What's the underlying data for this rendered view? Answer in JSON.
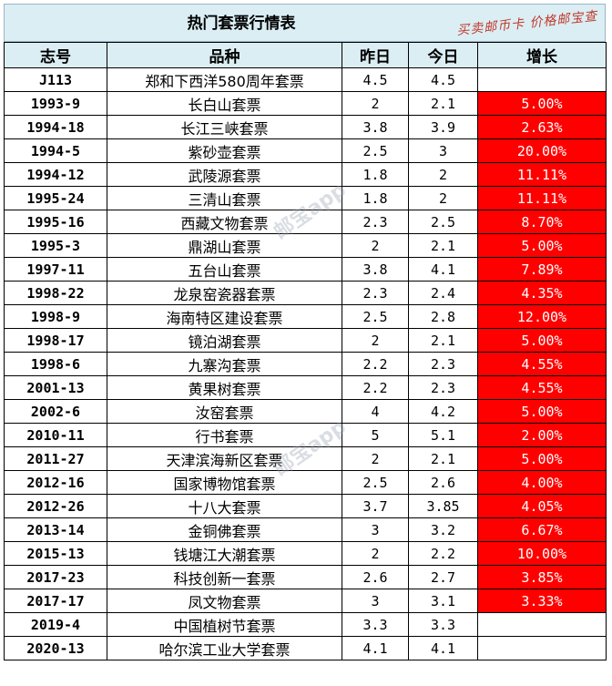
{
  "title": "热门套票行情表",
  "signature": "买卖邮币卡 价格邮宝查",
  "watermark": "邮宝app",
  "headers": [
    "志号",
    "品种",
    "昨日",
    "今日",
    "增长"
  ],
  "rows": [
    {
      "id": "J113",
      "name": "郑和下西洋580周年套票",
      "yesterday": "4.5",
      "today": "4.5",
      "growth": ""
    },
    {
      "id": "1993-9",
      "name": "长白山套票",
      "yesterday": "2",
      "today": "2.1",
      "growth": "5.00%"
    },
    {
      "id": "1994-18",
      "name": "长江三峡套票",
      "yesterday": "3.8",
      "today": "3.9",
      "growth": "2.63%"
    },
    {
      "id": "1994-5",
      "name": "紫砂壶套票",
      "yesterday": "2.5",
      "today": "3",
      "growth": "20.00%"
    },
    {
      "id": "1994-12",
      "name": "武陵源套票",
      "yesterday": "1.8",
      "today": "2",
      "growth": "11.11%"
    },
    {
      "id": "1995-24",
      "name": "三清山套票",
      "yesterday": "1.8",
      "today": "2",
      "growth": "11.11%"
    },
    {
      "id": "1995-16",
      "name": "西藏文物套票",
      "yesterday": "2.3",
      "today": "2.5",
      "growth": "8.70%"
    },
    {
      "id": "1995-3",
      "name": "鼎湖山套票",
      "yesterday": "2",
      "today": "2.1",
      "growth": "5.00%"
    },
    {
      "id": "1997-11",
      "name": "五台山套票",
      "yesterday": "3.8",
      "today": "4.1",
      "growth": "7.89%"
    },
    {
      "id": "1998-22",
      "name": "龙泉窑瓷器套票",
      "yesterday": "2.3",
      "today": "2.4",
      "growth": "4.35%"
    },
    {
      "id": "1998-9",
      "name": "海南特区建设套票",
      "yesterday": "2.5",
      "today": "2.8",
      "growth": "12.00%"
    },
    {
      "id": "1998-17",
      "name": "镜泊湖套票",
      "yesterday": "2",
      "today": "2.1",
      "growth": "5.00%"
    },
    {
      "id": "1998-6",
      "name": "九寨沟套票",
      "yesterday": "2.2",
      "today": "2.3",
      "growth": "4.55%"
    },
    {
      "id": "2001-13",
      "name": "黄果树套票",
      "yesterday": "2.2",
      "today": "2.3",
      "growth": "4.55%"
    },
    {
      "id": "2002-6",
      "name": "汝窑套票",
      "yesterday": "4",
      "today": "4.2",
      "growth": "5.00%"
    },
    {
      "id": "2010-11",
      "name": "行书套票",
      "yesterday": "5",
      "today": "5.1",
      "growth": "2.00%"
    },
    {
      "id": "2011-27",
      "name": "天津滨海新区套票",
      "yesterday": "2",
      "today": "2.1",
      "growth": "5.00%"
    },
    {
      "id": "2012-16",
      "name": "国家博物馆套票",
      "yesterday": "2.5",
      "today": "2.6",
      "growth": "4.00%"
    },
    {
      "id": "2012-26",
      "name": "十八大套票",
      "yesterday": "3.7",
      "today": "3.85",
      "growth": "4.05%"
    },
    {
      "id": "2013-14",
      "name": "金铜佛套票",
      "yesterday": "3",
      "today": "3.2",
      "growth": "6.67%"
    },
    {
      "id": "2015-13",
      "name": "钱塘江大潮套票",
      "yesterday": "2",
      "today": "2.2",
      "growth": "10.00%"
    },
    {
      "id": "2017-23",
      "name": "科技创新一套票",
      "yesterday": "2.6",
      "today": "2.7",
      "growth": "3.85%"
    },
    {
      "id": "2017-17",
      "name": "凤文物套票",
      "yesterday": "3",
      "today": "3.1",
      "growth": "3.33%"
    },
    {
      "id": "2019-4",
      "name": "中国植树节套票",
      "yesterday": "3.3",
      "today": "3.3",
      "growth": ""
    },
    {
      "id": "2020-13",
      "name": "哈尔滨工业大学套票",
      "yesterday": "4.1",
      "today": "4.1",
      "growth": ""
    }
  ],
  "colors": {
    "header_bg": "#dbeef4",
    "growth_bg": "#ff0000",
    "growth_text": "#ffffff",
    "signature": "#c0392b"
  }
}
